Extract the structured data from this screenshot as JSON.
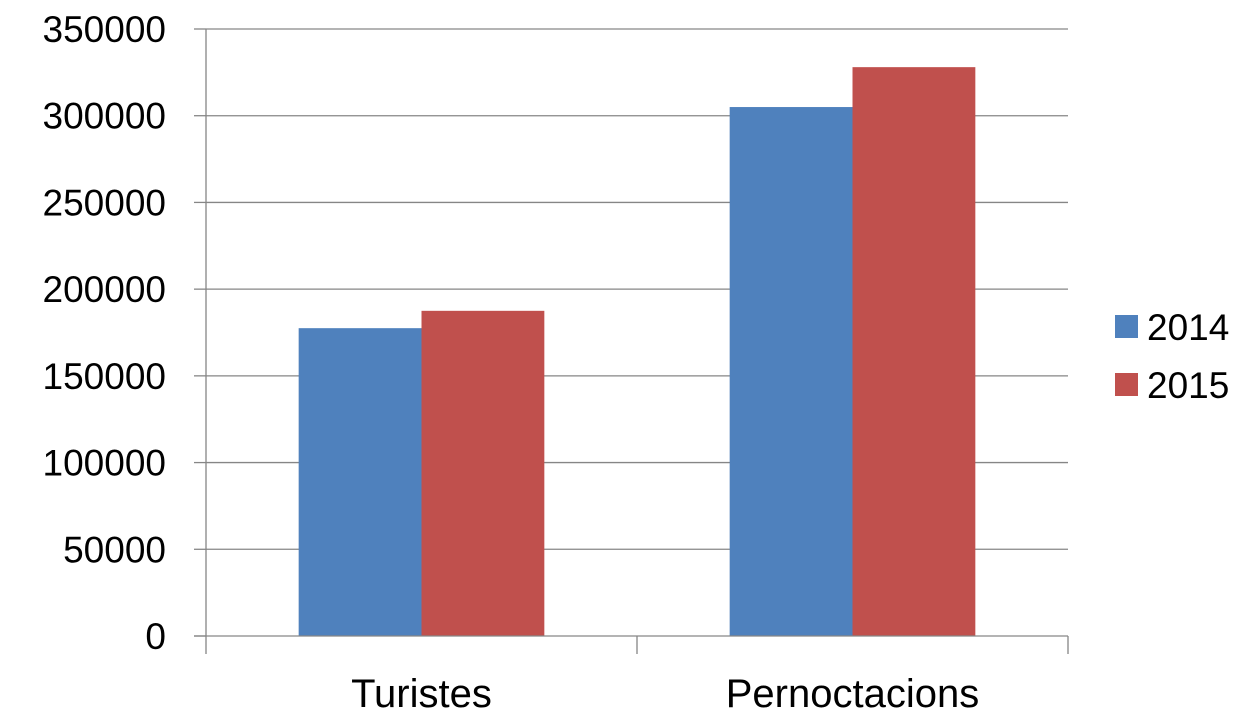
{
  "chart_data": {
    "type": "bar",
    "title": "",
    "xlabel": "",
    "ylabel": "",
    "categories": [
      "Turistes",
      "Pernoctacions"
    ],
    "series": [
      {
        "name": "2014",
        "color": "#4F81BD",
        "values": [
          177500,
          305000
        ]
      },
      {
        "name": "2015",
        "color": "#C0504D",
        "values": [
          187500,
          328000
        ]
      }
    ],
    "ylim": [
      0,
      350000
    ],
    "yticks": [
      0,
      50000,
      100000,
      150000,
      200000,
      250000,
      300000,
      350000
    ],
    "ytick_labels": [
      "0",
      "50000",
      "100000",
      "150000",
      "200000",
      "250000",
      "300000",
      "350000"
    ],
    "grid": true,
    "legend_position": "right"
  }
}
